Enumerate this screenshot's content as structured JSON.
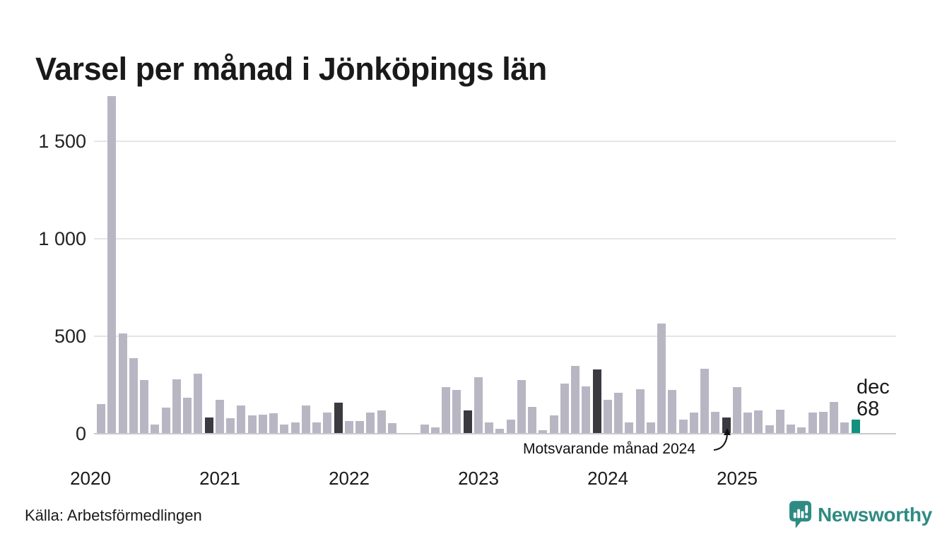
{
  "title": "Varsel per månad i Jönköpings län",
  "source": "Källa: Arbetsförmedlingen",
  "annotation": {
    "label": "Motsvarande månad 2024"
  },
  "last_label": {
    "month": "dec",
    "value": "68"
  },
  "brand": {
    "name": "Newsworthy"
  },
  "colors": {
    "bar_normal": "#b9b6c4",
    "bar_compare": "#3b3a40",
    "bar_latest": "#12917f",
    "grid": "#e6e6ea",
    "axis_zero": "#c9c9cf",
    "brand_teal": "#2e8b84"
  },
  "chart_data": {
    "type": "bar",
    "title": "Varsel per månad i Jönköpings län",
    "xlabel": "",
    "ylabel": "",
    "ylim": [
      0,
      1750
    ],
    "grid": true,
    "yticks": [
      {
        "value": 0,
        "label": "0"
      },
      {
        "value": 500,
        "label": "500"
      },
      {
        "value": 1000,
        "label": "1 000"
      },
      {
        "value": 1500,
        "label": "1 500"
      }
    ],
    "year_labels": [
      {
        "year": 2020,
        "label": "2020"
      },
      {
        "year": 2021,
        "label": "2021"
      },
      {
        "year": 2022,
        "label": "2022"
      },
      {
        "year": 2023,
        "label": "2023"
      },
      {
        "year": 2024,
        "label": "2024"
      },
      {
        "year": 2025,
        "label": "2025"
      }
    ],
    "highlight_note": "Motsvarande månad 2024",
    "points": [
      {
        "month": "feb",
        "year": 2020,
        "value": 150,
        "kind": "normal"
      },
      {
        "month": "mar",
        "year": 2020,
        "value": 1730,
        "kind": "normal"
      },
      {
        "month": "apr",
        "year": 2020,
        "value": 510,
        "kind": "normal"
      },
      {
        "month": "maj",
        "year": 2020,
        "value": 385,
        "kind": "normal"
      },
      {
        "month": "jun",
        "year": 2020,
        "value": 270,
        "kind": "normal"
      },
      {
        "month": "jul",
        "year": 2020,
        "value": 45,
        "kind": "normal"
      },
      {
        "month": "aug",
        "year": 2020,
        "value": 130,
        "kind": "normal"
      },
      {
        "month": "sep",
        "year": 2020,
        "value": 275,
        "kind": "normal"
      },
      {
        "month": "okt",
        "year": 2020,
        "value": 180,
        "kind": "normal"
      },
      {
        "month": "nov",
        "year": 2020,
        "value": 305,
        "kind": "normal"
      },
      {
        "month": "dec",
        "year": 2020,
        "value": 80,
        "kind": "compare"
      },
      {
        "month": "jan",
        "year": 2021,
        "value": 170,
        "kind": "normal"
      },
      {
        "month": "feb",
        "year": 2021,
        "value": 75,
        "kind": "normal"
      },
      {
        "month": "mar",
        "year": 2021,
        "value": 140,
        "kind": "normal"
      },
      {
        "month": "apr",
        "year": 2021,
        "value": 90,
        "kind": "normal"
      },
      {
        "month": "maj",
        "year": 2021,
        "value": 95,
        "kind": "normal"
      },
      {
        "month": "jun",
        "year": 2021,
        "value": 100,
        "kind": "normal"
      },
      {
        "month": "jul",
        "year": 2021,
        "value": 45,
        "kind": "normal"
      },
      {
        "month": "aug",
        "year": 2021,
        "value": 55,
        "kind": "normal"
      },
      {
        "month": "sep",
        "year": 2021,
        "value": 140,
        "kind": "normal"
      },
      {
        "month": "okt",
        "year": 2021,
        "value": 55,
        "kind": "normal"
      },
      {
        "month": "nov",
        "year": 2021,
        "value": 105,
        "kind": "normal"
      },
      {
        "month": "dec",
        "year": 2021,
        "value": 155,
        "kind": "compare"
      },
      {
        "month": "jan",
        "year": 2022,
        "value": 60,
        "kind": "normal"
      },
      {
        "month": "feb",
        "year": 2022,
        "value": 60,
        "kind": "normal"
      },
      {
        "month": "mar",
        "year": 2022,
        "value": 105,
        "kind": "normal"
      },
      {
        "month": "apr",
        "year": 2022,
        "value": 115,
        "kind": "normal"
      },
      {
        "month": "maj",
        "year": 2022,
        "value": 50,
        "kind": "normal"
      },
      {
        "month": "jun",
        "year": 2022,
        "value": 0,
        "kind": "normal"
      },
      {
        "month": "jul",
        "year": 2022,
        "value": 0,
        "kind": "normal"
      },
      {
        "month": "aug",
        "year": 2022,
        "value": 45,
        "kind": "normal"
      },
      {
        "month": "sep",
        "year": 2022,
        "value": 30,
        "kind": "normal"
      },
      {
        "month": "okt",
        "year": 2022,
        "value": 235,
        "kind": "normal"
      },
      {
        "month": "nov",
        "year": 2022,
        "value": 220,
        "kind": "normal"
      },
      {
        "month": "dec",
        "year": 2022,
        "value": 115,
        "kind": "compare"
      },
      {
        "month": "jan",
        "year": 2023,
        "value": 285,
        "kind": "normal"
      },
      {
        "month": "feb",
        "year": 2023,
        "value": 55,
        "kind": "normal"
      },
      {
        "month": "mar",
        "year": 2023,
        "value": 20,
        "kind": "normal"
      },
      {
        "month": "apr",
        "year": 2023,
        "value": 70,
        "kind": "normal"
      },
      {
        "month": "maj",
        "year": 2023,
        "value": 270,
        "kind": "normal"
      },
      {
        "month": "jun",
        "year": 2023,
        "value": 135,
        "kind": "normal"
      },
      {
        "month": "jul",
        "year": 2023,
        "value": 15,
        "kind": "normal"
      },
      {
        "month": "aug",
        "year": 2023,
        "value": 90,
        "kind": "normal"
      },
      {
        "month": "sep",
        "year": 2023,
        "value": 255,
        "kind": "normal"
      },
      {
        "month": "okt",
        "year": 2023,
        "value": 345,
        "kind": "normal"
      },
      {
        "month": "nov",
        "year": 2023,
        "value": 240,
        "kind": "normal"
      },
      {
        "month": "dec",
        "year": 2023,
        "value": 325,
        "kind": "compare"
      },
      {
        "month": "jan",
        "year": 2024,
        "value": 170,
        "kind": "normal"
      },
      {
        "month": "feb",
        "year": 2024,
        "value": 205,
        "kind": "normal"
      },
      {
        "month": "mar",
        "year": 2024,
        "value": 55,
        "kind": "normal"
      },
      {
        "month": "apr",
        "year": 2024,
        "value": 225,
        "kind": "normal"
      },
      {
        "month": "maj",
        "year": 2024,
        "value": 55,
        "kind": "normal"
      },
      {
        "month": "jun",
        "year": 2024,
        "value": 560,
        "kind": "normal"
      },
      {
        "month": "jul",
        "year": 2024,
        "value": 220,
        "kind": "normal"
      },
      {
        "month": "aug",
        "year": 2024,
        "value": 70,
        "kind": "normal"
      },
      {
        "month": "sep",
        "year": 2024,
        "value": 105,
        "kind": "normal"
      },
      {
        "month": "okt",
        "year": 2024,
        "value": 330,
        "kind": "normal"
      },
      {
        "month": "nov",
        "year": 2024,
        "value": 110,
        "kind": "normal"
      },
      {
        "month": "dec",
        "year": 2024,
        "value": 80,
        "kind": "compare"
      },
      {
        "month": "jan",
        "year": 2025,
        "value": 235,
        "kind": "normal"
      },
      {
        "month": "feb",
        "year": 2025,
        "value": 105,
        "kind": "normal"
      },
      {
        "month": "mar",
        "year": 2025,
        "value": 115,
        "kind": "normal"
      },
      {
        "month": "apr",
        "year": 2025,
        "value": 40,
        "kind": "normal"
      },
      {
        "month": "maj",
        "year": 2025,
        "value": 120,
        "kind": "normal"
      },
      {
        "month": "jun",
        "year": 2025,
        "value": 45,
        "kind": "normal"
      },
      {
        "month": "jul",
        "year": 2025,
        "value": 30,
        "kind": "normal"
      },
      {
        "month": "aug",
        "year": 2025,
        "value": 105,
        "kind": "normal"
      },
      {
        "month": "sep",
        "year": 2025,
        "value": 110,
        "kind": "normal"
      },
      {
        "month": "okt",
        "year": 2025,
        "value": 160,
        "kind": "normal"
      },
      {
        "month": "nov",
        "year": 2025,
        "value": 55,
        "kind": "normal"
      },
      {
        "month": "dec",
        "year": 2025,
        "value": 68,
        "kind": "latest"
      }
    ]
  }
}
